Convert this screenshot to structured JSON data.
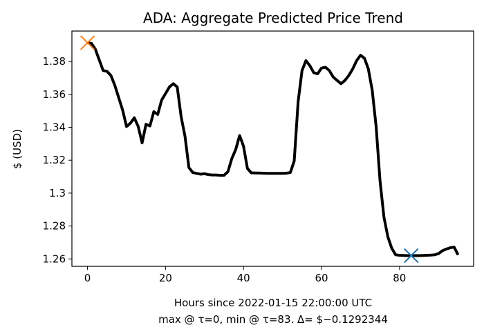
{
  "chart_data": {
    "type": "line",
    "title": "ADA: Aggregate Predicted Price Trend",
    "xlabel": "Hours since 2022-01-15 22:00:00 UTC",
    "xlabel2": "max @ τ=0, min @ τ=83. Δ= $−0.1292344",
    "ylabel": "$ (USD)",
    "xlim": [
      -4,
      99
    ],
    "ylim": [
      1.2555,
      1.3985
    ],
    "xticks": [
      0,
      20,
      40,
      60,
      80
    ],
    "xtick_labels": [
      "0",
      "20",
      "40",
      "60",
      "80"
    ],
    "yticks": [
      1.26,
      1.28,
      1.3,
      1.32,
      1.34,
      1.36,
      1.38
    ],
    "ytick_labels": [
      "1.26",
      "1.28",
      "1.3",
      "1.32",
      "1.34",
      "1.36",
      "1.38"
    ],
    "grid": false,
    "colors": {
      "line": "#000000",
      "max_marker": "#ff7f0e",
      "min_marker": "#1f77b4"
    },
    "series": [
      {
        "x": [
          0,
          1,
          2,
          3,
          4,
          5,
          6,
          7,
          8,
          9,
          10,
          11,
          12,
          13,
          14,
          15,
          16,
          17,
          18,
          19,
          20,
          21,
          22,
          23,
          24,
          25,
          26,
          27,
          28,
          29,
          30,
          31,
          32,
          33,
          34,
          35,
          36,
          37,
          38,
          39,
          40,
          41,
          42,
          43,
          44,
          45,
          46,
          47,
          48,
          49,
          50,
          51,
          52,
          53,
          54,
          55,
          56,
          57,
          58,
          59,
          60,
          61,
          62,
          63,
          64,
          65,
          66,
          67,
          68,
          69,
          70,
          71,
          72,
          73,
          74,
          75,
          76,
          77,
          78,
          79,
          80,
          81,
          82,
          83,
          84,
          85,
          86,
          87,
          88,
          89,
          90,
          91,
          92,
          93,
          94,
          95
        ],
        "values": [
          1.3914,
          1.391,
          1.3875,
          1.381,
          1.3745,
          1.374,
          1.3715,
          1.3655,
          1.358,
          1.3505,
          1.3405,
          1.3425,
          1.3458,
          1.3405,
          1.3305,
          1.3418,
          1.3408,
          1.3495,
          1.3478,
          1.3565,
          1.3605,
          1.3645,
          1.3665,
          1.3645,
          1.3465,
          1.3345,
          1.3155,
          1.3125,
          1.312,
          1.3115,
          1.3118,
          1.3112,
          1.311,
          1.311,
          1.3108,
          1.3108,
          1.313,
          1.321,
          1.3265,
          1.335,
          1.3285,
          1.315,
          1.3123,
          1.3122,
          1.3122,
          1.3121,
          1.312,
          1.312,
          1.312,
          1.312,
          1.312,
          1.3121,
          1.3125,
          1.3195,
          1.3555,
          1.3745,
          1.3805,
          1.3775,
          1.3732,
          1.3725,
          1.376,
          1.3765,
          1.3745,
          1.3705,
          1.3685,
          1.3665,
          1.3685,
          1.3715,
          1.3755,
          1.3805,
          1.3838,
          1.382,
          1.3755,
          1.3625,
          1.3405,
          1.3075,
          1.2855,
          1.2735,
          1.2665,
          1.2625,
          1.2622,
          1.2621,
          1.262,
          1.262,
          1.262,
          1.262,
          1.2621,
          1.2622,
          1.2623,
          1.2625,
          1.2632,
          1.265,
          1.266,
          1.2668,
          1.2672,
          1.2625
        ]
      }
    ],
    "markers": [
      {
        "x": 0,
        "y": 1.3914,
        "symbol": "x",
        "color": "#ff7f0e"
      },
      {
        "x": 83,
        "y": 1.262,
        "symbol": "x",
        "color": "#1f77b4"
      }
    ]
  }
}
